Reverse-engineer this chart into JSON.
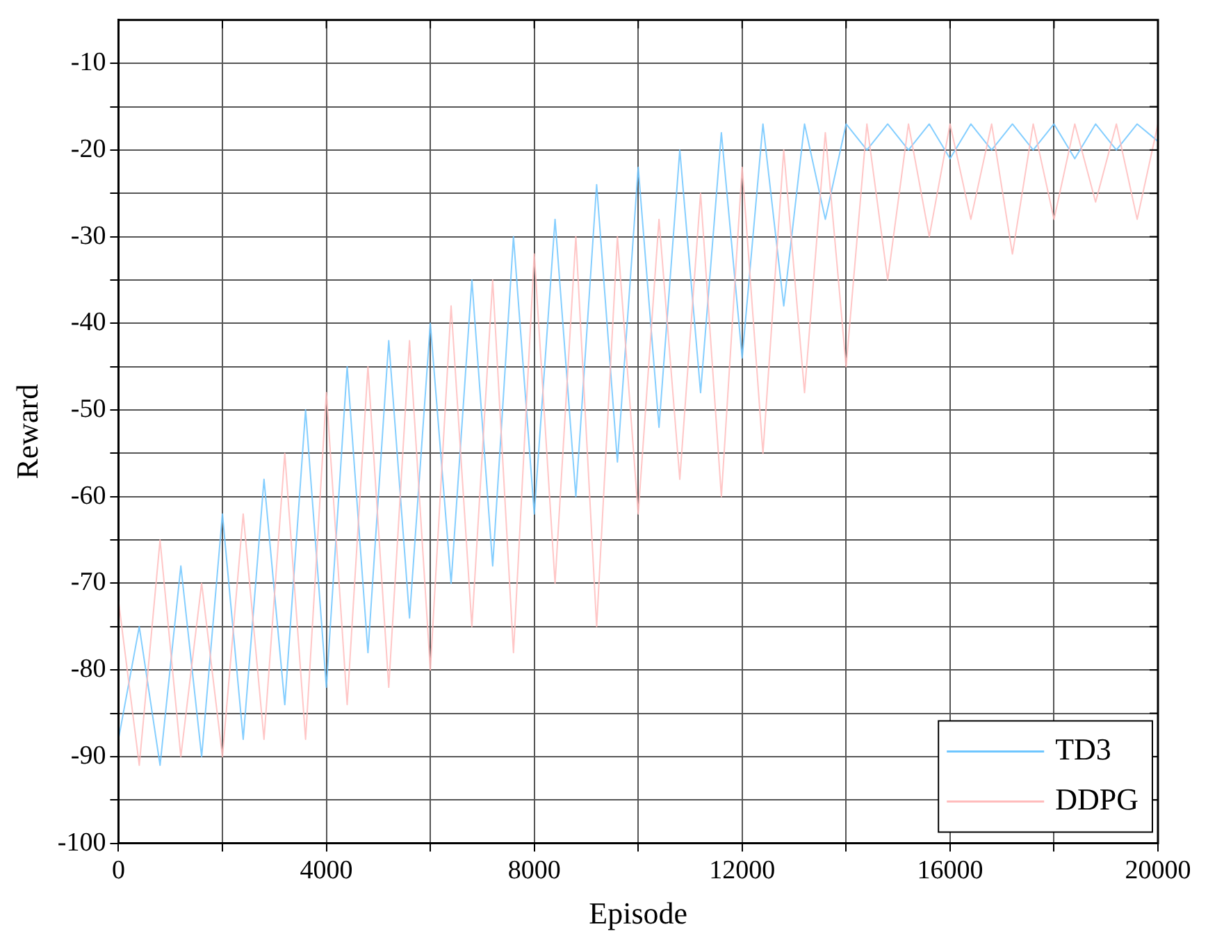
{
  "chart_data": {
    "type": "line",
    "xlabel": "Episode",
    "ylabel": "Reward",
    "x": [
      0,
      400,
      800,
      1200,
      1600,
      2000,
      2400,
      2800,
      3200,
      3600,
      4000,
      4400,
      4800,
      5200,
      5600,
      6000,
      6400,
      6800,
      7200,
      7600,
      8000,
      8400,
      8800,
      9200,
      9600,
      10000,
      10400,
      10800,
      11200,
      11600,
      12000,
      12400,
      12800,
      13200,
      13600,
      14000,
      14400,
      14800,
      15200,
      15600,
      16000,
      16400,
      16800,
      17200,
      17600,
      18000,
      18400,
      18800,
      19200,
      19600,
      20000
    ],
    "series": [
      {
        "name": "TD3",
        "color": "#6ec6ff",
        "values": [
          -88,
          -75,
          -91,
          -68,
          -90,
          -62,
          -88,
          -58,
          -84,
          -50,
          -82,
          -45,
          -78,
          -42,
          -74,
          -40,
          -70,
          -35,
          -68,
          -30,
          -62,
          -28,
          -60,
          -24,
          -56,
          -22,
          -52,
          -20,
          -48,
          -18,
          -44,
          -17,
          -38,
          -17,
          -28,
          -17,
          -20,
          -17,
          -20,
          -17,
          -21,
          -17,
          -20,
          -17,
          -20,
          -17,
          -21,
          -17,
          -20,
          -17,
          -19
        ]
      },
      {
        "name": "DDPG",
        "color": "#ffbcbc",
        "values": [
          -72,
          -91,
          -65,
          -90,
          -70,
          -90,
          -62,
          -88,
          -55,
          -88,
          -48,
          -84,
          -45,
          -82,
          -42,
          -80,
          -38,
          -75,
          -35,
          -78,
          -32,
          -70,
          -30,
          -75,
          -30,
          -62,
          -28,
          -58,
          -25,
          -60,
          -22,
          -55,
          -20,
          -48,
          -18,
          -45,
          -17,
          -35,
          -17,
          -30,
          -17,
          -28,
          -17,
          -32,
          -17,
          -28,
          -17,
          -26,
          -17,
          -28,
          -17
        ]
      }
    ],
    "xlim": [
      0,
      20000
    ],
    "xticks": [
      0,
      {
        "value": 2000,
        "label": null
      },
      4000,
      {
        "value": 6000,
        "label": null
      },
      8000,
      {
        "value": 10000,
        "label": null
      },
      12000,
      {
        "value": 14000,
        "label": null
      },
      16000,
      {
        "value": 18000,
        "label": null
      },
      20000
    ],
    "ylim": [
      -100,
      -5
    ],
    "yticks": [
      -100,
      {
        "value": -95,
        "label": null
      },
      -90,
      {
        "value": -85,
        "label": null
      },
      -80,
      {
        "value": -75,
        "label": null
      },
      -70,
      {
        "value": -65,
        "label": null
      },
      -60,
      {
        "value": -55,
        "label": null
      },
      -50,
      {
        "value": -45,
        "label": null
      },
      -40,
      {
        "value": -35,
        "label": null
      },
      -30,
      {
        "value": -25,
        "label": null
      },
      -20,
      {
        "value": -15,
        "label": null
      },
      -10
    ],
    "grid": true,
    "legend": "bottom right",
    "line_style": "solid",
    "marker": "none"
  }
}
